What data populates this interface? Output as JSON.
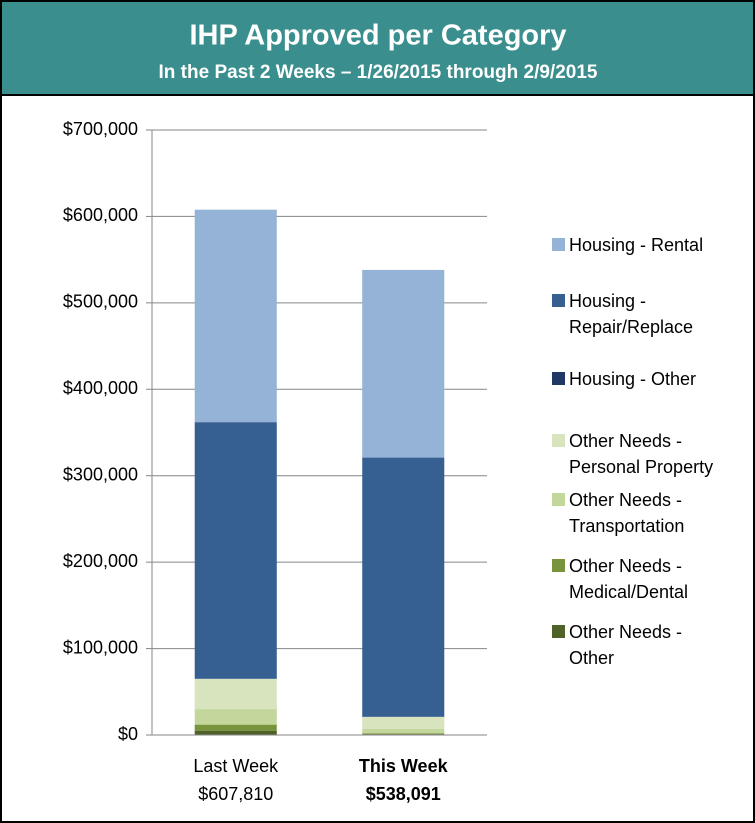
{
  "chart_data": {
    "type": "stacked_bar",
    "title": "IHP Approved per Category",
    "subtitle": "In the Past 2 Weeks – 1/26/2015 through 2/9/2015",
    "categories": [
      "Last Week",
      "This Week"
    ],
    "total_labels": [
      "$607,810",
      "$538,091"
    ],
    "series": [
      {
        "name": "Housing - Rental",
        "color": "#95b3d7",
        "values": [
          245810,
          217091
        ]
      },
      {
        "name": "Housing - Repair/Replace",
        "color": "#376092",
        "values": [
          297000,
          300000
        ]
      },
      {
        "name": "Housing - Other",
        "color": "#1f3864",
        "values": [
          0,
          0
        ]
      },
      {
        "name": "Other Needs - Personal Property",
        "color": "#d7e4bd",
        "values": [
          35000,
          14000
        ]
      },
      {
        "name": "Other Needs - Transportation",
        "color": "#c3d69b",
        "values": [
          18000,
          5000
        ]
      },
      {
        "name": "Other Needs - Medical/Dental",
        "color": "#77933c",
        "values": [
          7000,
          1000
        ]
      },
      {
        "name": "Other Needs - Other",
        "color": "#4f6228",
        "values": [
          5000,
          1000
        ]
      }
    ],
    "ylim": [
      0,
      700000
    ],
    "yticks": [
      {
        "value": 0,
        "label": "$0"
      },
      {
        "value": 100000,
        "label": "$100,000"
      },
      {
        "value": 200000,
        "label": "$200,000"
      },
      {
        "value": 300000,
        "label": "$300,000"
      },
      {
        "value": 400000,
        "label": "$400,000"
      },
      {
        "value": 500000,
        "label": "$500,000"
      },
      {
        "value": 600000,
        "label": "$600,000"
      },
      {
        "value": 700000,
        "label": "$700,000"
      }
    ],
    "grid": true
  }
}
